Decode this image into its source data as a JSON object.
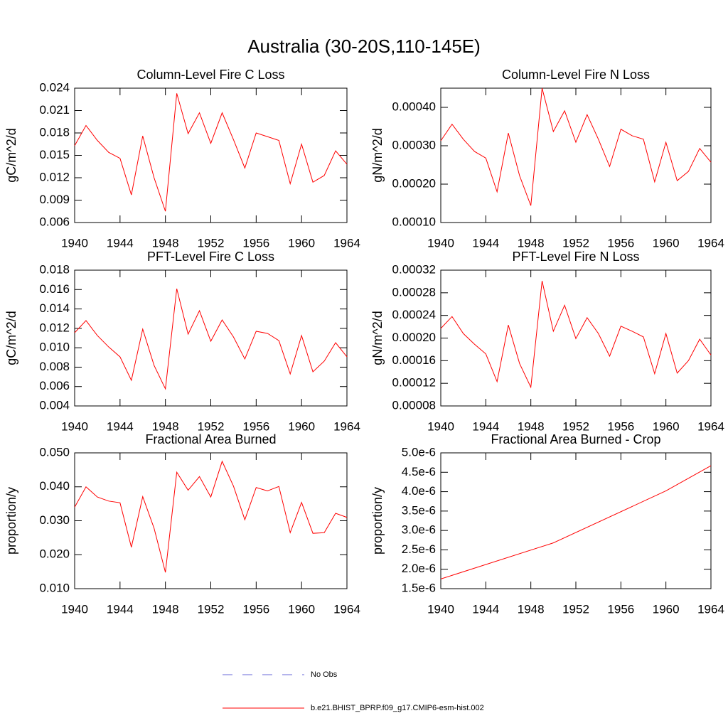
{
  "title": "Australia (30-20S,110-145E)",
  "legend": [
    {
      "name": "No Obs",
      "color": "#6a6ad8",
      "dash": true
    },
    {
      "name": "b.e21.BHIST_BPRP.f09_g17.CMIP6-esm-hist.002",
      "color": "#ff0000",
      "dash": false
    }
  ],
  "chart_data": [
    {
      "type": "line",
      "title": "Column-Level Fire C Loss",
      "ylabel": "gC/m^2/d",
      "color": "#ff0000",
      "x": [
        1940,
        1941,
        1942,
        1943,
        1944,
        1945,
        1946,
        1947,
        1948,
        1949,
        1950,
        1951,
        1952,
        1953,
        1954,
        1955,
        1956,
        1957,
        1958,
        1959,
        1960,
        1961,
        1962,
        1963,
        1964
      ],
      "values": [
        0.0163,
        0.019,
        0.017,
        0.0154,
        0.0146,
        0.0097,
        0.0176,
        0.012,
        0.0075,
        0.0233,
        0.0179,
        0.0207,
        0.0166,
        0.0207,
        0.0171,
        0.0133,
        0.018,
        0.0175,
        0.017,
        0.0112,
        0.0165,
        0.0114,
        0.0123,
        0.0156,
        0.0138
      ],
      "xlim": [
        1940,
        1964
      ],
      "xticks": [
        1940,
        1944,
        1948,
        1952,
        1956,
        1960,
        1964
      ],
      "ylim": [
        0.006,
        0.024
      ],
      "yticks": [
        0.006,
        0.009,
        0.012,
        0.015,
        0.018,
        0.021,
        0.024
      ]
    },
    {
      "type": "line",
      "title": "Column-Level Fire N Loss",
      "ylabel": "gN/m^2/d",
      "color": "#ff0000",
      "x": [
        1940,
        1941,
        1942,
        1943,
        1944,
        1945,
        1946,
        1947,
        1948,
        1949,
        1950,
        1951,
        1952,
        1953,
        1954,
        1955,
        1956,
        1957,
        1958,
        1959,
        1960,
        1961,
        1962,
        1963,
        1964
      ],
      "values": [
        0.000313,
        0.000356,
        0.000317,
        0.000285,
        0.000268,
        0.00018,
        0.000333,
        0.000222,
        0.000144,
        0.00045,
        0.000337,
        0.000391,
        0.000309,
        0.000381,
        0.000317,
        0.000246,
        0.000343,
        0.000326,
        0.000317,
        0.000206,
        0.000309,
        0.000209,
        0.000233,
        0.000293,
        0.000257
      ],
      "xlim": [
        1940,
        1964
      ],
      "xticks": [
        1940,
        1944,
        1948,
        1952,
        1956,
        1960,
        1964
      ],
      "ylim": [
        0.0001,
        0.00045
      ],
      "yticks": [
        {
          "value": 0.0001,
          "label": "0.00010"
        },
        {
          "value": 0.0002,
          "label": "0.00020"
        },
        {
          "value": 0.0003,
          "label": "0.00030"
        },
        {
          "value": 0.0004,
          "label": "0.00040"
        }
      ]
    },
    {
      "type": "line",
      "title": "PFT-Level Fire C Loss",
      "ylabel": "gC/m^2/d",
      "color": "#ff0000",
      "x": [
        1940,
        1941,
        1942,
        1943,
        1944,
        1945,
        1946,
        1947,
        1948,
        1949,
        1950,
        1951,
        1952,
        1953,
        1954,
        1955,
        1956,
        1957,
        1958,
        1959,
        1960,
        1961,
        1962,
        1963,
        1964
      ],
      "values": [
        0.01155,
        0.0128,
        0.01126,
        0.01008,
        0.00906,
        0.00664,
        0.01192,
        0.00818,
        0.00576,
        0.01609,
        0.0114,
        0.01382,
        0.01067,
        0.01287,
        0.01111,
        0.00884,
        0.0117,
        0.01148,
        0.01074,
        0.0073,
        0.01126,
        0.00752,
        0.00862,
        0.01052,
        0.00906
      ],
      "xlim": [
        1940,
        1964
      ],
      "xticks": [
        1940,
        1944,
        1948,
        1952,
        1956,
        1960,
        1964
      ],
      "ylim": [
        0.004,
        0.018
      ],
      "yticks": [
        0.004,
        0.006,
        0.008,
        {
          "value": 0.01,
          "label": "0.010"
        },
        0.012,
        0.014,
        0.016,
        0.018
      ]
    },
    {
      "type": "line",
      "title": "PFT-Level Fire N Loss",
      "ylabel": "gN/m^2/d",
      "color": "#ff0000",
      "x": [
        1940,
        1941,
        1942,
        1943,
        1944,
        1945,
        1946,
        1947,
        1948,
        1949,
        1950,
        1951,
        1952,
        1953,
        1954,
        1955,
        1956,
        1957,
        1958,
        1959,
        1960,
        1961,
        1962,
        1963,
        1964
      ],
      "values": [
        0.000217,
        0.000238,
        0.000208,
        0.000189,
        0.000172,
        0.000123,
        0.000223,
        0.000155,
        0.000113,
        0.000301,
        0.000212,
        0.000258,
        0.000199,
        0.000236,
        0.000208,
        0.000168,
        0.000221,
        0.000212,
        0.000202,
        0.000137,
        0.000208,
        0.000138,
        0.00016,
        0.000198,
        0.00017
      ],
      "xlim": [
        1940,
        1964
      ],
      "xticks": [
        1940,
        1944,
        1948,
        1952,
        1956,
        1960,
        1964
      ],
      "ylim": [
        8e-05,
        0.00032
      ],
      "yticks": [
        {
          "value": 8e-05,
          "label": "0.00008"
        },
        {
          "value": 0.00012,
          "label": "0.00012"
        },
        {
          "value": 0.00016,
          "label": "0.00016"
        },
        {
          "value": 0.0002,
          "label": "0.00020"
        },
        {
          "value": 0.00024,
          "label": "0.00024"
        },
        {
          "value": 0.00028,
          "label": "0.00028"
        },
        {
          "value": 0.00032,
          "label": "0.00032"
        }
      ]
    },
    {
      "type": "line",
      "title": "Fractional Area Burned",
      "ylabel": "proportion/y",
      "color": "#ff0000",
      "x": [
        1940,
        1941,
        1942,
        1943,
        1944,
        1945,
        1946,
        1947,
        1948,
        1949,
        1950,
        1951,
        1952,
        1953,
        1954,
        1955,
        1956,
        1957,
        1958,
        1959,
        1960,
        1961,
        1962,
        1963,
        1964
      ],
      "values": [
        0.034,
        0.04,
        0.037,
        0.0358,
        0.0353,
        0.0222,
        0.0371,
        0.0278,
        0.0148,
        0.0443,
        0.039,
        0.043,
        0.037,
        0.0475,
        0.0402,
        0.0303,
        0.0398,
        0.0388,
        0.0401,
        0.0265,
        0.0354,
        0.0263,
        0.0265,
        0.0322,
        0.031
      ],
      "xlim": [
        1940,
        1964
      ],
      "xticks": [
        1940,
        1944,
        1948,
        1952,
        1956,
        1960,
        1964
      ],
      "ylim": [
        0.01,
        0.05
      ],
      "yticks": [
        {
          "value": 0.01,
          "label": "0.010"
        },
        {
          "value": 0.02,
          "label": "0.020"
        },
        {
          "value": 0.03,
          "label": "0.030"
        },
        {
          "value": 0.04,
          "label": "0.040"
        },
        {
          "value": 0.05,
          "label": "0.050"
        }
      ]
    },
    {
      "type": "line",
      "title": "Fractional Area Burned - Crop",
      "ylabel": "proportion/y",
      "color": "#ff0000",
      "x": [
        1940,
        1950,
        1960,
        1964
      ],
      "values": [
        1.75e-06,
        2.68e-06,
        4.02e-06,
        4.67e-06
      ],
      "xlim": [
        1940,
        1964
      ],
      "xticks": [
        1940,
        1944,
        1948,
        1952,
        1956,
        1960,
        1964
      ],
      "ylim": [
        1.5e-06,
        5e-06
      ],
      "yticks": [
        {
          "value": 1.5e-06,
          "label": "1.5e-6"
        },
        {
          "value": 2e-06,
          "label": "2.0e-6"
        },
        {
          "value": 2.5e-06,
          "label": "2.5e-6"
        },
        {
          "value": 3e-06,
          "label": "3.0e-6"
        },
        {
          "value": 3.5e-06,
          "label": "3.5e-6"
        },
        {
          "value": 4e-06,
          "label": "4.0e-6"
        },
        {
          "value": 4.5e-06,
          "label": "4.5e-6"
        },
        {
          "value": 5e-06,
          "label": "5.0e-6"
        }
      ]
    }
  ]
}
